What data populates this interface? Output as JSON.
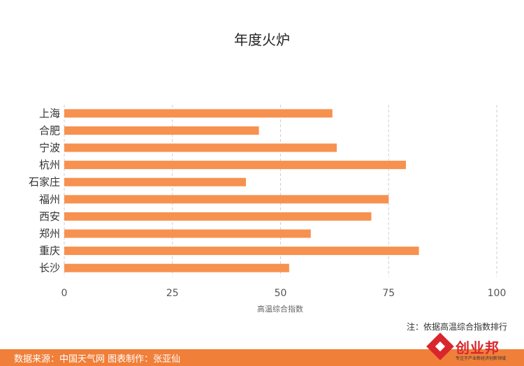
{
  "chart_data": {
    "type": "bar",
    "orientation": "horizontal",
    "title": "年度火炉",
    "xlabel": "高温综合指数",
    "ylabel": "",
    "xlim": [
      0,
      100
    ],
    "xticks": [
      0,
      25,
      50,
      75,
      100
    ],
    "grid": "vertical-dashed",
    "categories": [
      "上海",
      "合肥",
      "宁波",
      "杭州",
      "石家庄",
      "福州",
      "西安",
      "郑州",
      "重庆",
      "长沙"
    ],
    "values": [
      62,
      45,
      63,
      79,
      42,
      75,
      71,
      57,
      82,
      52
    ],
    "bar_color": "#f79150"
  },
  "note": "注：依据高温综合指数排行",
  "footer": {
    "text": "数据来源：中国天气网  图表制作：张亚仙",
    "color": "#f07f3a"
  },
  "logo": {
    "name": "创业邦",
    "tagline": "专注于产业新经济创新领域",
    "icon": "diamond-logo-icon"
  }
}
